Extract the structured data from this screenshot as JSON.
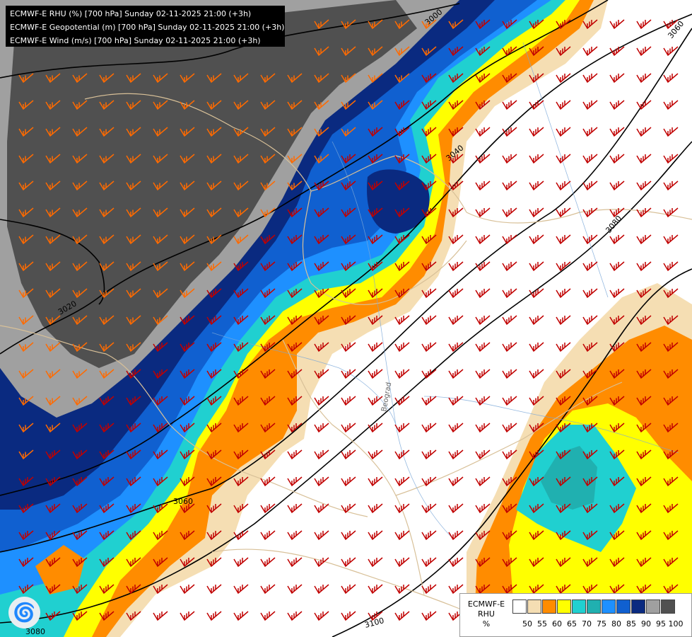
{
  "titles": [
    "ECMWF-E RHU (%) [700 hPa] Sunday 02-11-2025 21:00 (+3h)",
    "ECMWF-E Geopotential (m) [700 hPa] Sunday 02-11-2025 21:00 (+3h)",
    "ECMWF-E Wind (m/s) [700 hPa] Sunday 02-11-2025 21:00 (+3h)"
  ],
  "legend": {
    "label_line1": "ECMWF-E",
    "label_line2": "RHU",
    "label_line3": "%",
    "ticks": [
      "50",
      "55",
      "60",
      "65",
      "70",
      "75",
      "80",
      "85",
      "90",
      "95",
      "100"
    ],
    "colors": [
      "#ffffff",
      "#f5deb3",
      "#ff8c00",
      "#ffff00",
      "#20d0d0",
      "#20b0b0",
      "#1e90ff",
      "#1060d0",
      "#0a2a80",
      "#a0a0a0",
      "#505050"
    ]
  },
  "contours": {
    "labels": [
      "3000",
      "3020",
      "3040",
      "3060",
      "3060",
      "3080",
      "3080",
      "3100"
    ]
  },
  "place_label": "Beograd",
  "icons": {
    "logo": "ecmwf-swirl-icon",
    "wind": "wind-barb-icon"
  }
}
